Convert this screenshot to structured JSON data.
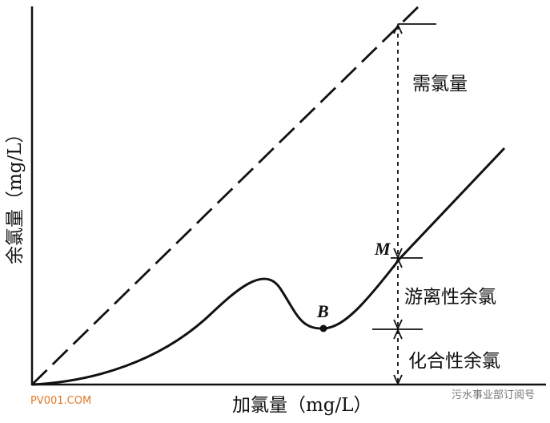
{
  "axes": {
    "y_label": "余氯量（mg/L）",
    "x_label": "加氯量（mg/L）"
  },
  "annotations": {
    "demand": "需氯量",
    "free": "游离性余氯",
    "combined": "化合性余氯"
  },
  "points": {
    "M": "M",
    "B": "B"
  },
  "watermarks": {
    "left": "PV001.COM",
    "right": "污水事业部订阅号"
  }
}
